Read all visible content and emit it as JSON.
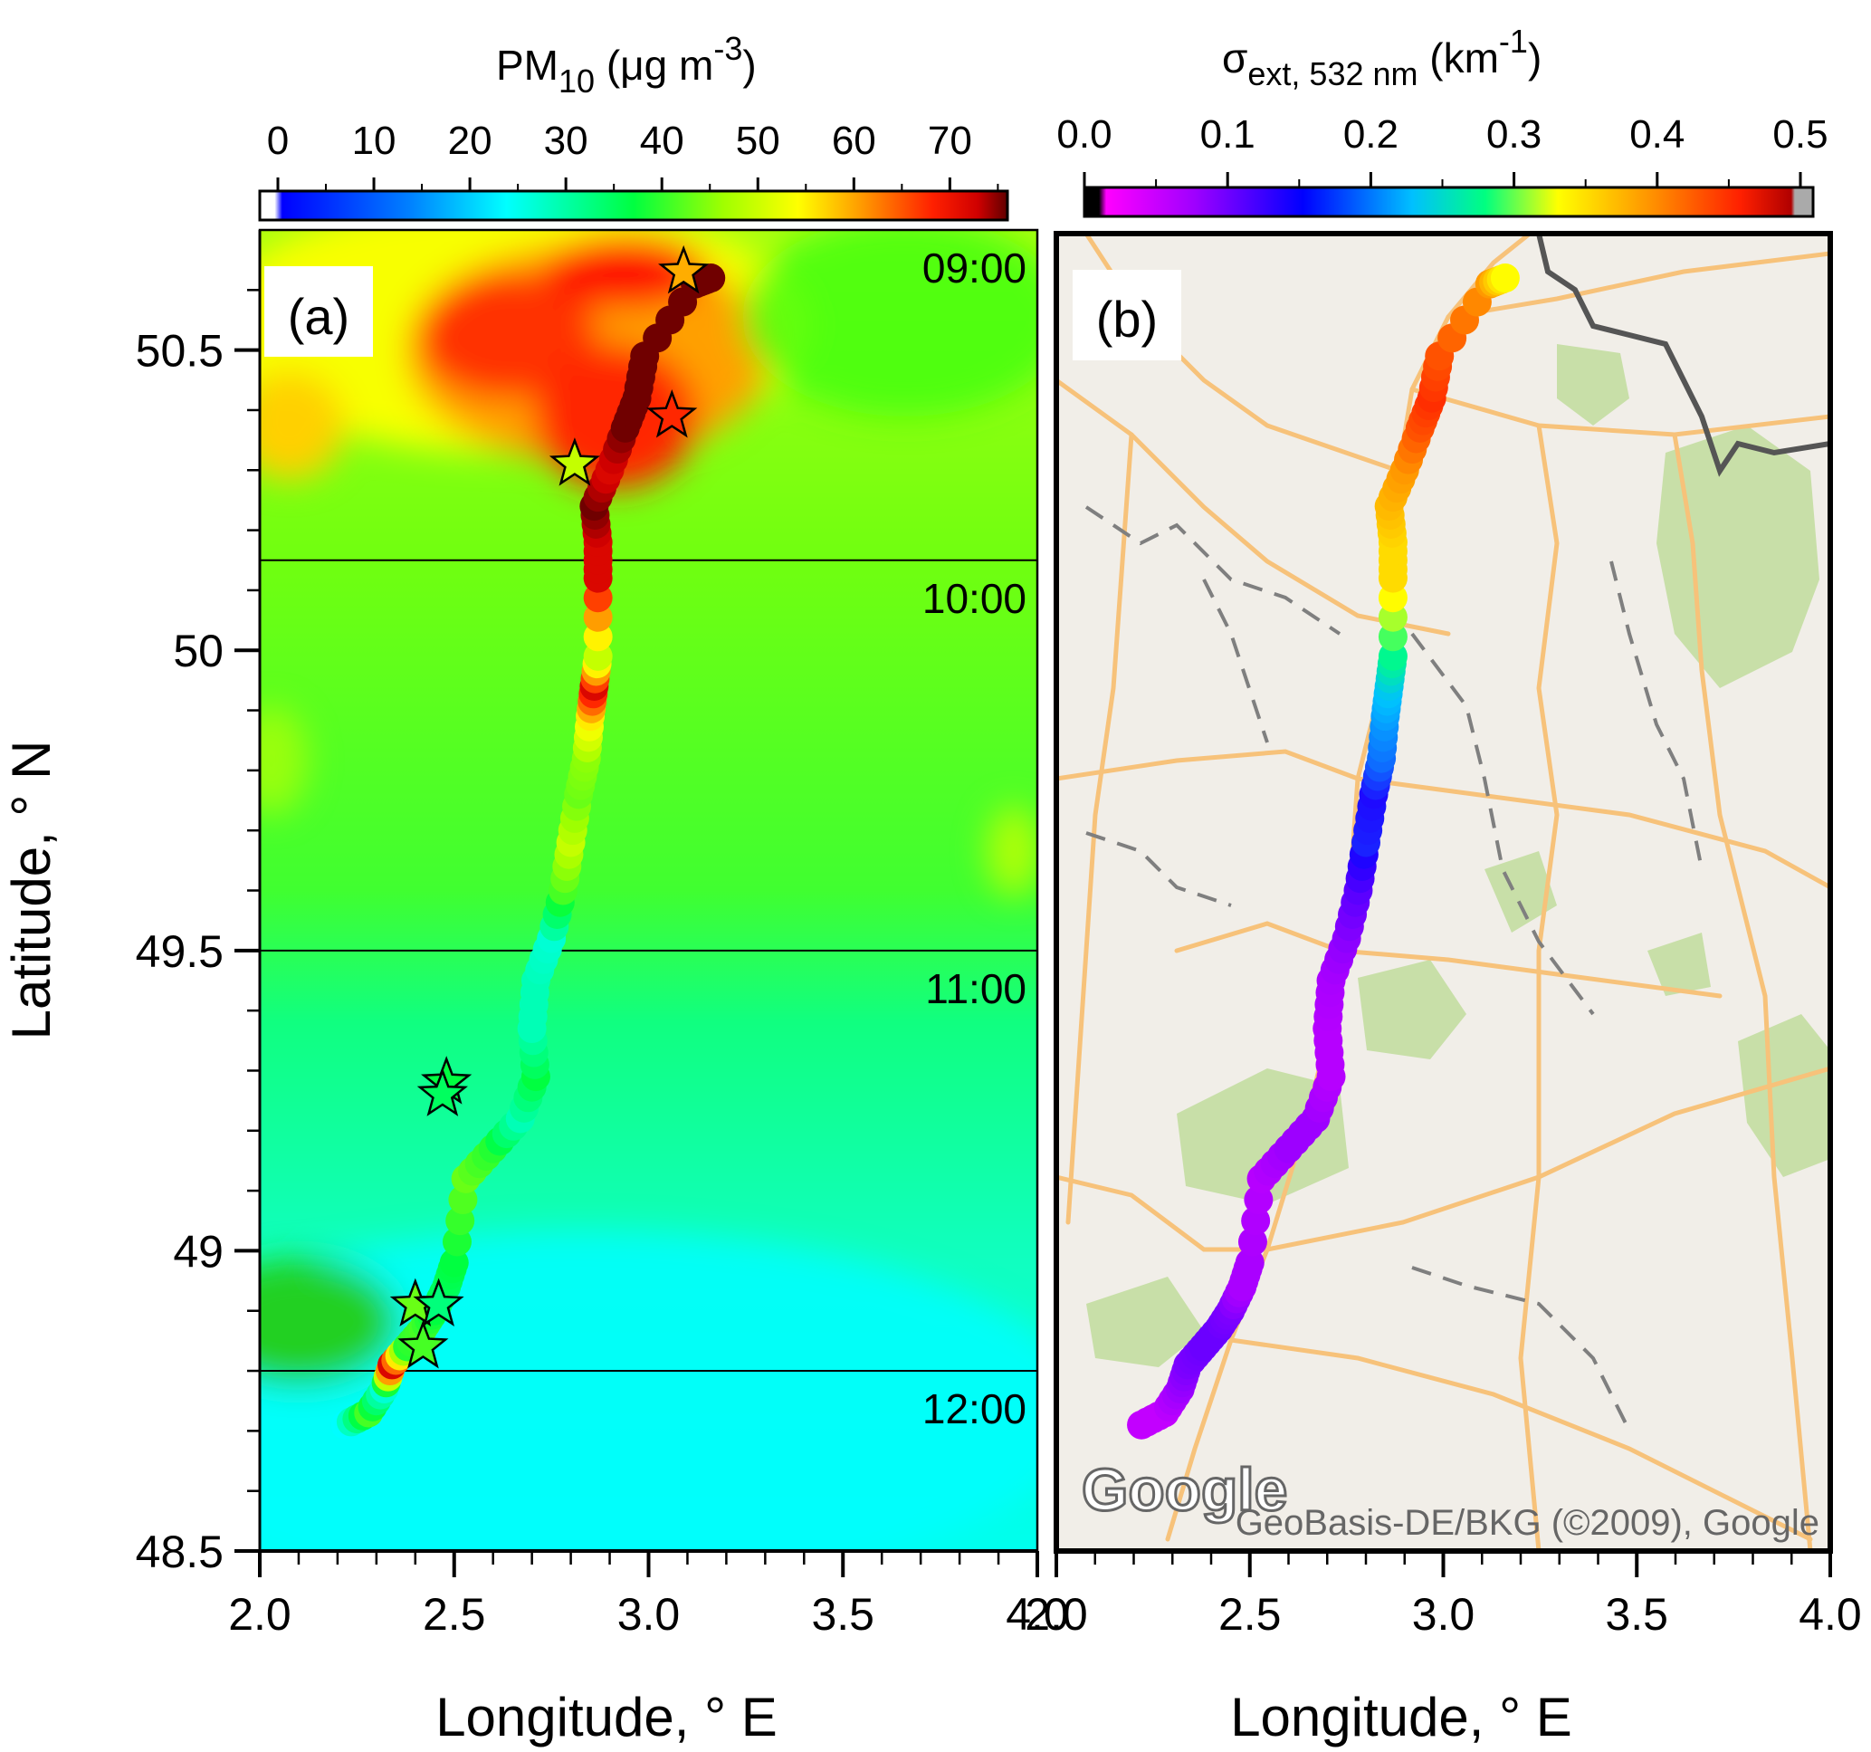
{
  "panel_a": {
    "label": "(a)",
    "colorbar": {
      "title_main": "PM",
      "title_sub": "10",
      "title_unit_pre": " (μg m",
      "title_unit_sup": "-3",
      "title_unit_post": ")",
      "ticks": [
        "0",
        "10",
        "20",
        "30",
        "40",
        "50",
        "60",
        "70"
      ],
      "range": [
        0,
        76
      ],
      "colormap": "rainbow-blue-green-yellow-red"
    },
    "time_labels": [
      "09:00",
      "10:00",
      "11:00",
      "12:00"
    ],
    "time_boundaries_lat": [
      50.15,
      49.5,
      48.8
    ],
    "background": "interpolated PM10 concentration field"
  },
  "panel_b": {
    "label": "(b)",
    "colorbar": {
      "title_main": "σ",
      "title_sub": "ext, 532 nm",
      "title_unit_pre": " (km",
      "title_unit_sup": "-1",
      "title_unit_post": ")",
      "ticks": [
        "0.0",
        "0.1",
        "0.2",
        "0.3",
        "0.4",
        "0.5"
      ],
      "range": [
        0,
        0.52
      ],
      "colormap": "black-magenta-purple-blue-cyan-green-yellow-red"
    },
    "map_watermark": "Google",
    "map_attribution": "GeoBasis-DE/BKG (©2009), Google",
    "map_colors": {
      "land": "#f1eee8",
      "forest": "#c8dfa8",
      "road": "#f7c27a",
      "border": "#555555",
      "river": "#7f7f7f"
    }
  },
  "axes": {
    "ylabel": "Latitude, ° N",
    "xlabel": "Longitude, ° E",
    "xlim": [
      2.0,
      4.0
    ],
    "ylim": [
      48.5,
      50.7
    ],
    "xticks": [
      "2.0",
      "2.5",
      "3.0",
      "3.5",
      "4.0"
    ],
    "yticks": [
      "48.5",
      "49",
      "49.5",
      "50",
      "50.5"
    ]
  },
  "chart_data": {
    "type": "scatter",
    "x_quantity": "Longitude, ° E",
    "y_quantity": "Latitude, ° N",
    "track": [
      {
        "lon": 2.22,
        "lat": 48.71,
        "pm10": 25,
        "sigma": 0.05
      },
      {
        "lon": 2.28,
        "lat": 48.73,
        "pm10": 42,
        "sigma": 0.05
      },
      {
        "lon": 2.32,
        "lat": 48.77,
        "pm10": 28,
        "sigma": 0.08
      },
      {
        "lon": 2.34,
        "lat": 48.81,
        "pm10": 72,
        "sigma": 0.1
      },
      {
        "lon": 2.38,
        "lat": 48.84,
        "pm10": 40,
        "sigma": 0.11
      },
      {
        "lon": 2.42,
        "lat": 48.87,
        "pm10": 42,
        "sigma": 0.11
      },
      {
        "lon": 2.45,
        "lat": 48.9,
        "pm10": 38,
        "sigma": 0.1
      },
      {
        "lon": 2.48,
        "lat": 48.94,
        "pm10": 36,
        "sigma": 0.07
      },
      {
        "lon": 2.5,
        "lat": 48.98,
        "pm10": 38,
        "sigma": 0.07
      },
      {
        "lon": 2.53,
        "lat": 49.12,
        "pm10": 44,
        "sigma": 0.06
      },
      {
        "lon": 2.6,
        "lat": 49.17,
        "pm10": 40,
        "sigma": 0.08
      },
      {
        "lon": 2.67,
        "lat": 49.22,
        "pm10": 30,
        "sigma": 0.08
      },
      {
        "lon": 2.71,
        "lat": 49.29,
        "pm10": 38,
        "sigma": 0.06
      },
      {
        "lon": 2.7,
        "lat": 49.37,
        "pm10": 30,
        "sigma": 0.06
      },
      {
        "lon": 2.71,
        "lat": 49.45,
        "pm10": 30,
        "sigma": 0.07
      },
      {
        "lon": 2.75,
        "lat": 49.52,
        "pm10": 28,
        "sigma": 0.09
      },
      {
        "lon": 2.78,
        "lat": 49.6,
        "pm10": 42,
        "sigma": 0.12
      },
      {
        "lon": 2.8,
        "lat": 49.68,
        "pm10": 50,
        "sigma": 0.17
      },
      {
        "lon": 2.82,
        "lat": 49.76,
        "pm10": 44,
        "sigma": 0.16
      },
      {
        "lon": 2.84,
        "lat": 49.82,
        "pm10": 46,
        "sigma": 0.2
      },
      {
        "lon": 2.85,
        "lat": 49.89,
        "pm10": 56,
        "sigma": 0.22
      },
      {
        "lon": 2.86,
        "lat": 49.94,
        "pm10": 72,
        "sigma": 0.24
      },
      {
        "lon": 2.87,
        "lat": 49.99,
        "pm10": 50,
        "sigma": 0.28
      },
      {
        "lon": 2.87,
        "lat": 50.12,
        "pm10": 72,
        "sigma": 0.36
      },
      {
        "lon": 2.87,
        "lat": 50.18,
        "pm10": 72,
        "sigma": 0.36
      },
      {
        "lon": 2.86,
        "lat": 50.24,
        "pm10": 76,
        "sigma": 0.38
      },
      {
        "lon": 2.9,
        "lat": 50.3,
        "pm10": 72,
        "sigma": 0.4
      },
      {
        "lon": 2.94,
        "lat": 50.37,
        "pm10": 76,
        "sigma": 0.44
      },
      {
        "lon": 2.97,
        "lat": 50.42,
        "pm10": 76,
        "sigma": 0.46
      },
      {
        "lon": 2.99,
        "lat": 50.49,
        "pm10": 76,
        "sigma": 0.44
      },
      {
        "lon": 3.12,
        "lat": 50.61,
        "pm10": 76,
        "sigma": 0.4
      },
      {
        "lon": 3.16,
        "lat": 50.62,
        "pm10": 76,
        "sigma": 0.34
      }
    ],
    "stations": [
      {
        "lon": 3.09,
        "lat": 50.63,
        "pm10": 60
      },
      {
        "lon": 3.06,
        "lat": 50.39,
        "pm10": 68
      },
      {
        "lon": 2.81,
        "lat": 50.31,
        "pm10": 50
      },
      {
        "lon": 2.48,
        "lat": 49.28,
        "pm10": 38
      },
      {
        "lon": 2.47,
        "lat": 49.26,
        "pm10": 36
      },
      {
        "lon": 2.4,
        "lat": 48.91,
        "pm10": 44
      },
      {
        "lon": 2.46,
        "lat": 48.91,
        "pm10": 34
      },
      {
        "lon": 2.42,
        "lat": 48.84,
        "pm10": 42
      }
    ]
  }
}
